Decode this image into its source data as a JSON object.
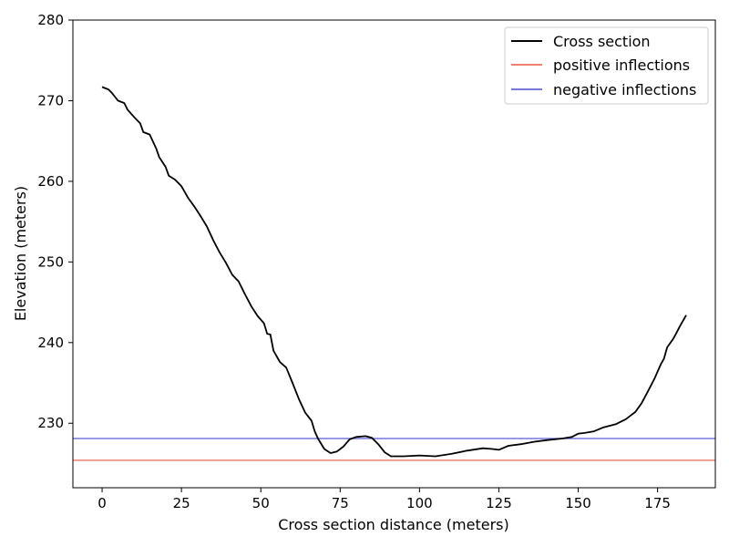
{
  "chart_data": {
    "type": "line",
    "xlabel": "Cross section distance (meters)",
    "ylabel": "Elevation (meters)",
    "xlim": [
      -9.2,
      193.2
    ],
    "ylim": [
      222,
      280
    ],
    "x_ticks": [
      0,
      25,
      50,
      75,
      100,
      125,
      150,
      175
    ],
    "y_ticks": [
      230,
      240,
      250,
      260,
      270,
      280
    ],
    "grid": false,
    "legend_position": "top-right",
    "series": [
      {
        "name": "Cross section",
        "color": "#000000",
        "points": [
          [
            0,
            271.7
          ],
          [
            2,
            271.4
          ],
          [
            3,
            271.0
          ],
          [
            4,
            270.5
          ],
          [
            5,
            270.0
          ],
          [
            7,
            269.7
          ],
          [
            8,
            268.9
          ],
          [
            10,
            268.0
          ],
          [
            12,
            267.2
          ],
          [
            13,
            266.1
          ],
          [
            15,
            265.8
          ],
          [
            17,
            264.1
          ],
          [
            18,
            263.0
          ],
          [
            20,
            261.8
          ],
          [
            21,
            260.7
          ],
          [
            23,
            260.2
          ],
          [
            25,
            259.4
          ],
          [
            27,
            258.0
          ],
          [
            29,
            256.9
          ],
          [
            31,
            255.7
          ],
          [
            33,
            254.4
          ],
          [
            35,
            252.7
          ],
          [
            37,
            251.2
          ],
          [
            39,
            249.9
          ],
          [
            41,
            248.4
          ],
          [
            43,
            247.6
          ],
          [
            45,
            246.0
          ],
          [
            47,
            244.5
          ],
          [
            49,
            243.3
          ],
          [
            51,
            242.4
          ],
          [
            52,
            241.1
          ],
          [
            53,
            241.0
          ],
          [
            54,
            239.0
          ],
          [
            56,
            237.6
          ],
          [
            58,
            236.9
          ],
          [
            60,
            235.0
          ],
          [
            62,
            233.0
          ],
          [
            64,
            231.3
          ],
          [
            66,
            230.3
          ],
          [
            67,
            229.0
          ],
          [
            68,
            228.1
          ],
          [
            70,
            226.8
          ],
          [
            72,
            226.3
          ],
          [
            74,
            226.5
          ],
          [
            76,
            227.1
          ],
          [
            78,
            228.0
          ],
          [
            80,
            228.3
          ],
          [
            83,
            228.4
          ],
          [
            85,
            228.2
          ],
          [
            87,
            227.4
          ],
          [
            89,
            226.4
          ],
          [
            91,
            225.9
          ],
          [
            95,
            225.9
          ],
          [
            100,
            226.0
          ],
          [
            105,
            225.9
          ],
          [
            110,
            226.2
          ],
          [
            115,
            226.6
          ],
          [
            120,
            226.9
          ],
          [
            123,
            226.8
          ],
          [
            125,
            226.7
          ],
          [
            128,
            227.2
          ],
          [
            132,
            227.4
          ],
          [
            136,
            227.7
          ],
          [
            140,
            227.9
          ],
          [
            145,
            228.1
          ],
          [
            148,
            228.3
          ],
          [
            150,
            228.7
          ],
          [
            152,
            228.8
          ],
          [
            155,
            229.0
          ],
          [
            158,
            229.5
          ],
          [
            162,
            229.9
          ],
          [
            165,
            230.5
          ],
          [
            168,
            231.4
          ],
          [
            170,
            232.5
          ],
          [
            172,
            234.0
          ],
          [
            174,
            235.5
          ],
          [
            176,
            237.3
          ],
          [
            177,
            238.0
          ],
          [
            178,
            239.4
          ],
          [
            180,
            240.5
          ],
          [
            182,
            242.0
          ],
          [
            184,
            243.4
          ]
        ]
      },
      {
        "name": "positive inflections",
        "color": "#f08070",
        "hline": 225.4
      },
      {
        "name": "negative inflections",
        "color": "#7777dd",
        "hline": 228.1
      }
    ]
  }
}
